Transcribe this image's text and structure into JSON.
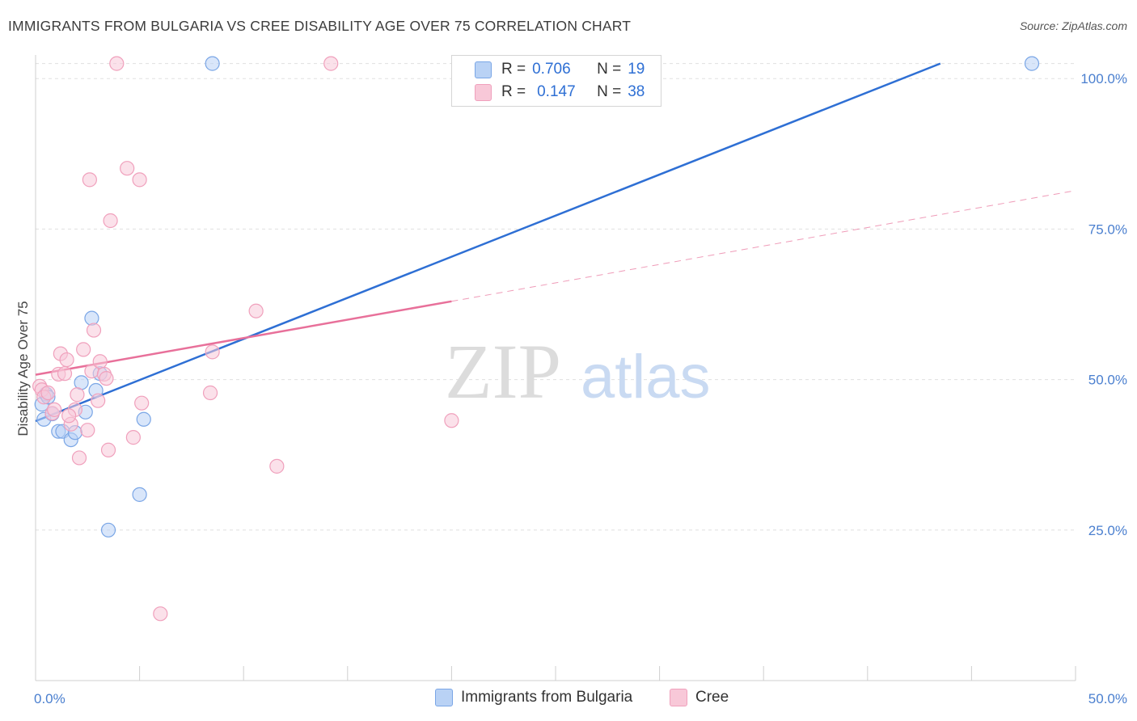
{
  "title": "IMMIGRANTS FROM BULGARIA VS CREE DISABILITY AGE OVER 75 CORRELATION CHART",
  "source": "Source: ZipAtlas.com",
  "watermark": {
    "zip": "ZIP",
    "atlas": "atlas"
  },
  "legend": {
    "row1": {
      "r_label": "R =",
      "r_value": "0.706",
      "n_label": "N =",
      "n_value": "19"
    },
    "row2": {
      "r_label": "R =",
      "r_value": "0.147",
      "n_label": "N =",
      "n_value": "38"
    }
  },
  "bottom_legend": {
    "series1": "Immigrants from Bulgaria",
    "series2": "Cree"
  },
  "colors": {
    "blue_fill": "#b9d2f5",
    "blue_stroke": "#7aa6e6",
    "blue_line": "#2e6fd4",
    "pink_fill": "#f8c8d8",
    "pink_stroke": "#f0a0bc",
    "pink_line": "#e8709a",
    "grid": "#e0e0e0",
    "tick_text": "#4a7fcf"
  },
  "chart_data": {
    "type": "scatter",
    "title": "IMMIGRANTS FROM BULGARIA VS CREE DISABILITY AGE OVER 75 CORRELATION CHART",
    "xlabel": "",
    "ylabel": "Disability Age Over 75",
    "xlim": [
      0,
      50
    ],
    "ylim": [
      0,
      105
    ],
    "x_ticks": [
      0,
      5,
      10,
      15,
      20,
      25,
      30,
      35,
      40,
      45,
      50
    ],
    "x_tick_labels": {
      "0": "0.0%",
      "50": "50.0%"
    },
    "y_ticks": [
      25,
      50,
      75,
      100
    ],
    "y_tick_labels": [
      "25.0%",
      "50.0%",
      "75.0%",
      "100.0%"
    ],
    "grid": true,
    "legend_position": "top-center",
    "series": [
      {
        "name": "Immigrants from Bulgaria",
        "color": "blue",
        "points": [
          [
            0.3,
            45.9
          ],
          [
            0.4,
            43.4
          ],
          [
            0.5,
            47.6
          ],
          [
            0.6,
            47.1
          ],
          [
            0.8,
            44.3
          ],
          [
            1.1,
            41.4
          ],
          [
            1.3,
            41.4
          ],
          [
            1.7,
            40.0
          ],
          [
            1.9,
            41.2
          ],
          [
            2.2,
            49.5
          ],
          [
            2.4,
            44.6
          ],
          [
            2.7,
            60.2
          ],
          [
            2.9,
            48.2
          ],
          [
            3.1,
            51.0
          ],
          [
            3.5,
            25.0
          ],
          [
            5.0,
            30.9
          ],
          [
            5.2,
            43.4
          ],
          [
            8.5,
            102.5
          ],
          [
            47.9,
            102.5
          ]
        ],
        "trendline": {
          "x": [
            0,
            43.5
          ],
          "y": [
            43.1,
            102.5
          ]
        }
      },
      {
        "name": "Cree",
        "color": "pink",
        "points": [
          [
            0.2,
            48.9
          ],
          [
            0.3,
            48.3
          ],
          [
            0.4,
            47.1
          ],
          [
            0.6,
            47.8
          ],
          [
            0.8,
            44.4
          ],
          [
            0.9,
            45.0
          ],
          [
            1.1,
            50.9
          ],
          [
            1.2,
            54.3
          ],
          [
            1.4,
            51.0
          ],
          [
            1.5,
            53.3
          ],
          [
            1.7,
            42.6
          ],
          [
            1.9,
            45.0
          ],
          [
            2.1,
            37.0
          ],
          [
            2.3,
            55.0
          ],
          [
            2.5,
            41.6
          ],
          [
            2.7,
            51.4
          ],
          [
            2.8,
            58.2
          ],
          [
            3.1,
            53.0
          ],
          [
            3.3,
            50.9
          ],
          [
            3.4,
            50.2
          ],
          [
            3.5,
            38.3
          ],
          [
            3.6,
            76.4
          ],
          [
            3.9,
            102.5
          ],
          [
            4.4,
            85.1
          ],
          [
            4.7,
            40.4
          ],
          [
            5.0,
            83.2
          ],
          [
            5.1,
            46.1
          ],
          [
            6.0,
            11.1
          ],
          [
            8.4,
            47.8
          ],
          [
            8.5,
            54.6
          ],
          [
            10.6,
            61.4
          ],
          [
            11.6,
            35.6
          ],
          [
            14.2,
            102.5
          ],
          [
            20.0,
            43.2
          ],
          [
            2.6,
            83.2
          ],
          [
            2.0,
            47.5
          ],
          [
            1.6,
            44.0
          ],
          [
            3.0,
            46.5
          ]
        ],
        "trendline": {
          "x": [
            0,
            20
          ],
          "y": [
            50.8,
            63.0
          ]
        },
        "trendline_dashed": {
          "x": [
            20,
            50
          ],
          "y": [
            63.0,
            81.4
          ]
        }
      }
    ]
  }
}
